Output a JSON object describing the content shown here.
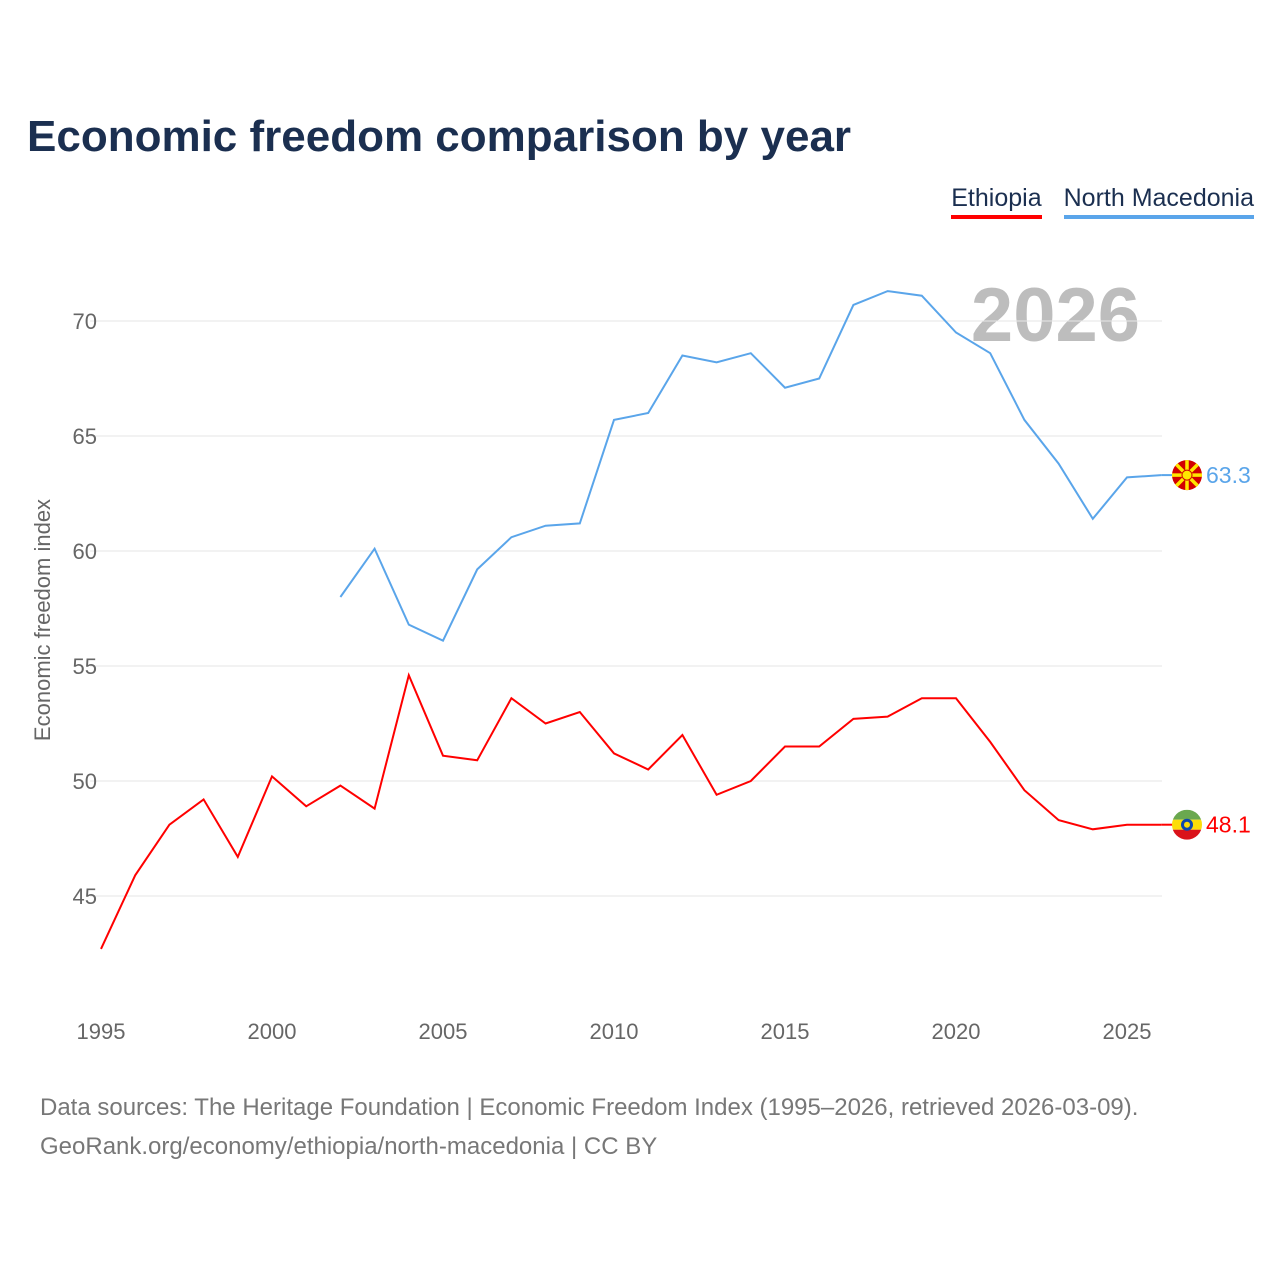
{
  "title": "Economic freedom comparison by year",
  "legend": [
    {
      "label": "Ethiopia",
      "color": "#ff0000"
    },
    {
      "label": "North Macedonia",
      "color": "#5aa5ea"
    }
  ],
  "year_badge": "2026",
  "footer": {
    "line1": "Data sources: The Heritage Foundation | Economic Freedom Index (1995–2026, retrieved 2026-03-09).",
    "line2": "GeoRank.org/economy/ethiopia/north-macedonia | CC BY"
  },
  "chart_data": {
    "type": "line",
    "title": "Economic freedom comparison by year",
    "xlabel": "",
    "ylabel": "Economic freedom index",
    "xlim": [
      1995,
      2026
    ],
    "ylim": [
      41,
      73
    ],
    "xticks": [
      1995,
      2000,
      2005,
      2010,
      2015,
      2020,
      2025
    ],
    "yticks": [
      45,
      50,
      55,
      60,
      65,
      70
    ],
    "grid": true,
    "legend_position": "top-right",
    "series": [
      {
        "name": "Ethiopia",
        "color": "#ff0000",
        "end_label": "48.1",
        "x": [
          1995,
          1996,
          1997,
          1998,
          1999,
          2000,
          2001,
          2002,
          2003,
          2004,
          2005,
          2006,
          2007,
          2008,
          2009,
          2010,
          2011,
          2012,
          2013,
          2014,
          2015,
          2016,
          2017,
          2018,
          2019,
          2020,
          2021,
          2022,
          2023,
          2024,
          2025,
          2026
        ],
        "y": [
          42.7,
          45.9,
          48.1,
          49.2,
          46.7,
          50.2,
          48.9,
          49.8,
          48.8,
          54.6,
          51.1,
          50.9,
          53.6,
          52.5,
          53.0,
          51.2,
          50.5,
          52.0,
          49.4,
          50.0,
          51.5,
          51.5,
          52.7,
          52.8,
          53.6,
          53.6,
          51.7,
          49.6,
          48.3,
          47.9,
          48.1,
          48.1
        ]
      },
      {
        "name": "North Macedonia",
        "color": "#5aa5ea",
        "end_label": "63.3",
        "x": [
          2002,
          2003,
          2004,
          2005,
          2006,
          2007,
          2008,
          2009,
          2010,
          2011,
          2012,
          2013,
          2014,
          2015,
          2016,
          2017,
          2018,
          2019,
          2020,
          2021,
          2022,
          2023,
          2024,
          2025,
          2026
        ],
        "y": [
          58.0,
          60.1,
          56.8,
          56.1,
          59.2,
          60.6,
          61.1,
          61.2,
          65.7,
          66.0,
          68.5,
          68.2,
          68.6,
          67.1,
          67.5,
          70.7,
          71.3,
          71.1,
          69.5,
          68.6,
          65.7,
          63.8,
          61.4,
          63.2,
          63.3
        ]
      }
    ]
  }
}
